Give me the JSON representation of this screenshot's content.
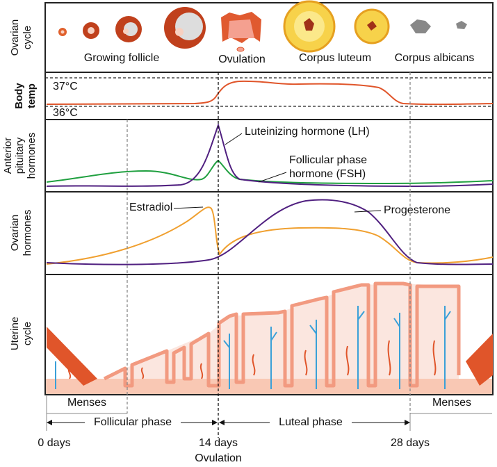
{
  "row_labels": [
    [
      "Ovarian",
      "cycle"
    ],
    [
      "Body",
      "temp"
    ],
    [
      "Anterior",
      "pituitary",
      "hormones"
    ],
    [
      "Ovarian",
      "hormones"
    ],
    [
      "Uterine",
      "cycle"
    ]
  ],
  "ovarian_cycle": [
    "Growing follicle",
    "Ovulation",
    "Corpus luteum",
    "Corpus albicans"
  ],
  "body_temp": [
    "37°C",
    "36°C"
  ],
  "pituitary": {
    "lh": "Luteinizing hormone (LH)",
    "fsh": [
      "Follicular phase",
      "hormone (FSH)"
    ]
  },
  "ovarian_hormones": {
    "estradiol": "Estradiol",
    "progesterone": "Progesterone"
  },
  "menses": [
    "Menses",
    "Menses"
  ],
  "phases": [
    "Follicular phase",
    "Luteal phase"
  ],
  "days": [
    "0 days",
    "14 days",
    "28 days"
  ],
  "ovulation": "Ovulation"
}
